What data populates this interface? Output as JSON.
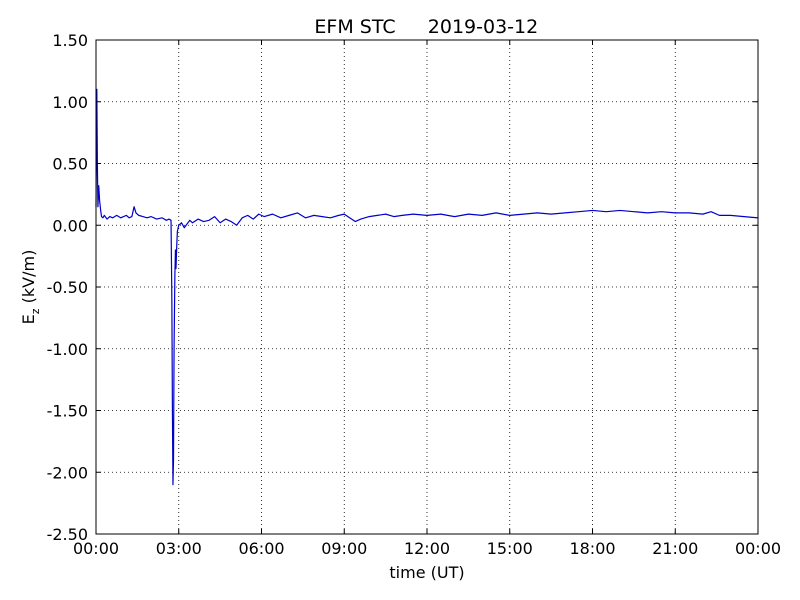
{
  "chart_data": {
    "type": "line",
    "title": "EFM STC",
    "subtitle": "2019-03-12",
    "xlabel": "time (UT)",
    "ylabel_main": "E",
    "ylabel_sub": "z",
    "ylabel_unit": " (kV/m)",
    "x_tick_labels": [
      "00:00",
      "03:00",
      "06:00",
      "09:00",
      "12:00",
      "15:00",
      "18:00",
      "21:00",
      "00:00"
    ],
    "x_tick_hours": [
      0,
      3,
      6,
      9,
      12,
      15,
      18,
      21,
      24
    ],
    "xlim_hours": [
      0,
      24
    ],
    "y_tick_labels": [
      "1.50",
      "1.00",
      "0.50",
      "0.00",
      "-0.50",
      "-1.00",
      "-1.50",
      "-2.00",
      "-2.50"
    ],
    "y_tick_values": [
      1.5,
      1.0,
      0.5,
      0.0,
      -0.5,
      -1.0,
      -1.5,
      -2.0,
      -2.5
    ],
    "ylim": [
      -2.5,
      1.5
    ],
    "grid": true,
    "line_color": "#0000cc",
    "series": [
      {
        "x_hours": [
          0.0,
          0.03,
          0.05,
          0.07,
          0.1,
          0.13,
          0.17,
          0.2,
          0.25,
          0.3,
          0.4,
          0.5,
          0.6,
          0.75,
          0.9,
          1.0,
          1.1,
          1.2,
          1.3,
          1.38,
          1.45,
          1.55,
          1.7,
          1.85,
          2.0,
          2.2,
          2.4,
          2.55,
          2.65,
          2.72,
          2.75,
          2.77,
          2.79,
          2.81,
          2.83,
          2.86,
          2.88,
          2.9,
          2.93,
          2.95,
          3.0,
          3.1,
          3.2,
          3.3,
          3.4,
          3.5,
          3.7,
          3.9,
          4.1,
          4.3,
          4.5,
          4.7,
          4.9,
          5.1,
          5.3,
          5.5,
          5.7,
          5.9,
          6.1,
          6.4,
          6.7,
          7.0,
          7.3,
          7.6,
          7.9,
          8.2,
          8.5,
          8.8,
          9.0,
          9.2,
          9.4,
          9.6,
          9.9,
          10.2,
          10.5,
          10.8,
          11.1,
          11.5,
          12.0,
          12.5,
          13.0,
          13.5,
          14.0,
          14.5,
          15.0,
          15.5,
          16.0,
          16.5,
          17.0,
          17.5,
          18.0,
          18.5,
          19.0,
          19.5,
          20.0,
          20.5,
          21.0,
          21.5,
          22.0,
          22.3,
          22.6,
          23.0,
          23.5,
          24.0
        ],
        "values": [
          0.15,
          1.1,
          0.5,
          0.15,
          0.32,
          0.2,
          0.12,
          0.07,
          0.06,
          0.08,
          0.05,
          0.07,
          0.06,
          0.08,
          0.06,
          0.07,
          0.08,
          0.06,
          0.07,
          0.15,
          0.1,
          0.08,
          0.07,
          0.06,
          0.07,
          0.05,
          0.06,
          0.04,
          0.05,
          0.04,
          -0.6,
          -1.5,
          -2.1,
          -1.9,
          -1.0,
          -0.4,
          -0.2,
          -0.35,
          -0.15,
          -0.05,
          0.0,
          0.02,
          -0.02,
          0.01,
          0.04,
          0.02,
          0.05,
          0.03,
          0.04,
          0.07,
          0.02,
          0.05,
          0.03,
          0.0,
          0.06,
          0.08,
          0.05,
          0.09,
          0.07,
          0.09,
          0.06,
          0.08,
          0.1,
          0.06,
          0.08,
          0.07,
          0.06,
          0.08,
          0.09,
          0.06,
          0.03,
          0.05,
          0.07,
          0.08,
          0.09,
          0.07,
          0.08,
          0.09,
          0.08,
          0.09,
          0.07,
          0.09,
          0.08,
          0.1,
          0.08,
          0.09,
          0.1,
          0.09,
          0.1,
          0.11,
          0.12,
          0.11,
          0.12,
          0.11,
          0.1,
          0.11,
          0.1,
          0.1,
          0.09,
          0.11,
          0.08,
          0.08,
          0.07,
          0.06
        ]
      }
    ]
  }
}
